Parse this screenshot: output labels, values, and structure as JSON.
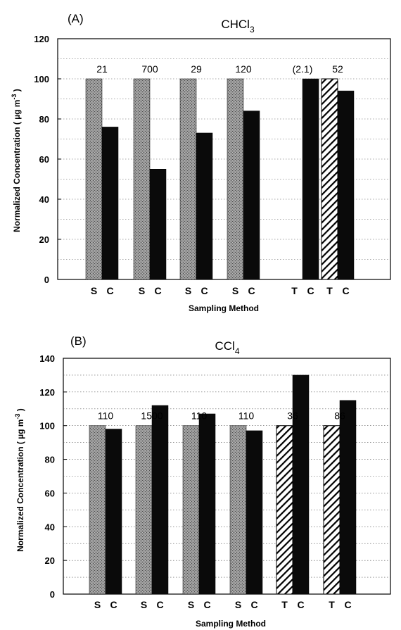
{
  "chart_data": [
    {
      "type": "bar",
      "panel_label": "(A)",
      "title": "CHCl",
      "title_subscript": "3",
      "ylabel": "Normalized Concentration",
      "ylabel_unit_prefix": "( µg m",
      "ylabel_unit_exp": "-3",
      "ylabel_unit_suffix": " )",
      "xlabel": "Sampling Method",
      "ylim": [
        0,
        120
      ],
      "yticks": [
        0,
        20,
        40,
        60,
        80,
        100,
        120
      ],
      "grid": true,
      "groups": [
        {
          "label": "21",
          "bars": [
            {
              "cat": "S",
              "value": 100,
              "pattern": "stipple"
            },
            {
              "cat": "C",
              "value": 76,
              "pattern": "solid"
            }
          ]
        },
        {
          "label": "700",
          "bars": [
            {
              "cat": "S",
              "value": 100,
              "pattern": "stipple"
            },
            {
              "cat": "C",
              "value": 55,
              "pattern": "solid"
            }
          ]
        },
        {
          "label": "29",
          "bars": [
            {
              "cat": "S",
              "value": 100,
              "pattern": "stipple"
            },
            {
              "cat": "C",
              "value": 73,
              "pattern": "solid"
            }
          ]
        },
        {
          "label": "120",
          "bars": [
            {
              "cat": "S",
              "value": 100,
              "pattern": "stipple"
            },
            {
              "cat": "C",
              "value": 84,
              "pattern": "solid"
            }
          ]
        },
        {
          "label": "(2.1)",
          "bars": [
            {
              "cat": "T",
              "value": 0,
              "pattern": "hatch"
            },
            {
              "cat": "C",
              "value": 100,
              "pattern": "solid"
            }
          ]
        },
        {
          "label": "52",
          "bars": [
            {
              "cat": "T",
              "value": 100,
              "pattern": "hatch"
            },
            {
              "cat": "C",
              "value": 94,
              "pattern": "solid"
            }
          ]
        }
      ]
    },
    {
      "type": "bar",
      "panel_label": "(B)",
      "title": "CCl",
      "title_subscript": "4",
      "ylabel": "Normalized Concentration",
      "ylabel_unit_prefix": "( µg m",
      "ylabel_unit_exp": "-3",
      "ylabel_unit_suffix": " )",
      "xlabel": "Sampling Method",
      "ylim": [
        0,
        140
      ],
      "yticks": [
        0,
        20,
        40,
        60,
        80,
        100,
        120,
        140
      ],
      "grid": true,
      "groups": [
        {
          "label": "110",
          "bars": [
            {
              "cat": "S",
              "value": 100,
              "pattern": "stipple"
            },
            {
              "cat": "C",
              "value": 98,
              "pattern": "solid"
            }
          ]
        },
        {
          "label": "1500",
          "bars": [
            {
              "cat": "S",
              "value": 100,
              "pattern": "stipple"
            },
            {
              "cat": "C",
              "value": 112,
              "pattern": "solid"
            }
          ]
        },
        {
          "label": "110",
          "bars": [
            {
              "cat": "S",
              "value": 100,
              "pattern": "stipple"
            },
            {
              "cat": "C",
              "value": 107,
              "pattern": "solid"
            }
          ]
        },
        {
          "label": "110",
          "bars": [
            {
              "cat": "S",
              "value": 100,
              "pattern": "stipple"
            },
            {
              "cat": "C",
              "value": 97,
              "pattern": "solid"
            }
          ]
        },
        {
          "label": "36",
          "bars": [
            {
              "cat": "T",
              "value": 100,
              "pattern": "hatch"
            },
            {
              "cat": "C",
              "value": 130,
              "pattern": "solid"
            }
          ]
        },
        {
          "label": "86",
          "bars": [
            {
              "cat": "T",
              "value": 100,
              "pattern": "hatch"
            },
            {
              "cat": "C",
              "value": 115,
              "pattern": "solid"
            }
          ]
        }
      ]
    }
  ],
  "colors": {
    "solid": "#0a0a0a",
    "stipple": "#8c8c8c",
    "hatch": "#000000",
    "grid": "#555555"
  }
}
